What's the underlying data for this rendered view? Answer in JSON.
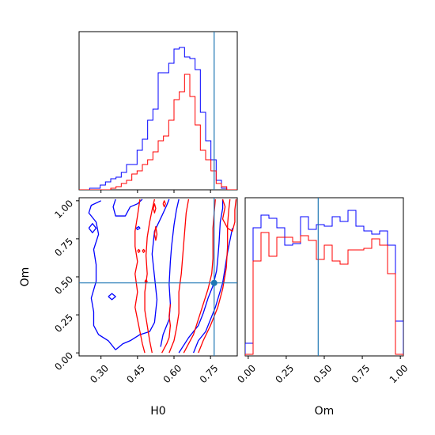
{
  "chart_data": {
    "type": "corner",
    "parameters": [
      "H0",
      "Om"
    ],
    "truth": {
      "H0": 0.765,
      "Om": 0.46
    },
    "colors": {
      "blue": "#0000ff",
      "red": "#ff0000",
      "truth": "#1f77b4"
    },
    "axes": {
      "H0": {
        "range": [
          0.21,
          0.86
        ],
        "ticks": [
          0.3,
          0.45,
          0.6,
          0.75
        ],
        "tick_labels": [
          "0.30",
          "0.45",
          "0.60",
          "0.75"
        ],
        "label": "H0"
      },
      "Om": {
        "range": [
          -0.02,
          1.02
        ],
        "ticks": [
          0.0,
          0.25,
          0.5,
          0.75,
          1.0
        ],
        "tick_labels": [
          "0.00",
          "0.25",
          "0.50",
          "0.75",
          "1.00"
        ],
        "label": "Om"
      }
    },
    "hist_H0": {
      "edges": [
        0.21,
        0.2317,
        0.2533,
        0.275,
        0.2967,
        0.3183,
        0.34,
        0.3617,
        0.3833,
        0.405,
        0.4267,
        0.4483,
        0.47,
        0.4917,
        0.5133,
        0.535,
        0.5567,
        0.5783,
        0.6,
        0.6217,
        0.6433,
        0.665,
        0.6867,
        0.7083,
        0.73,
        0.7517,
        0.7733,
        0.795,
        0.8167,
        0.8383,
        0.86
      ],
      "series": [
        {
          "color": "blue",
          "values": [
            0,
            0,
            0.01,
            0.01,
            0.03,
            0.05,
            0.07,
            0.08,
            0.11,
            0.16,
            0.16,
            0.25,
            0.32,
            0.44,
            0.51,
            0.74,
            0.74,
            0.8,
            0.89,
            0.9,
            0.84,
            0.83,
            0.76,
            0.49,
            0.31,
            0.19,
            0.06,
            0.01,
            0,
            0
          ]
        },
        {
          "color": "red",
          "values": [
            0,
            0,
            0,
            0,
            0,
            0,
            0.01,
            0.02,
            0.04,
            0.06,
            0.1,
            0.12,
            0.16,
            0.19,
            0.24,
            0.31,
            0.34,
            0.44,
            0.57,
            0.62,
            0.73,
            0.59,
            0.41,
            0.25,
            0.19,
            0.12,
            0.04,
            0.02,
            0,
            0
          ]
        }
      ]
    },
    "hist_Om": {
      "edges": [
        -0.02,
        0.032,
        0.084,
        0.136,
        0.188,
        0.24,
        0.292,
        0.344,
        0.396,
        0.448,
        0.5,
        0.552,
        0.604,
        0.656,
        0.708,
        0.76,
        0.812,
        0.864,
        0.916,
        0.968,
        1.02
      ],
      "series": [
        {
          "color": "blue",
          "values": [
            0.08,
            0.81,
            0.89,
            0.87,
            0.81,
            0.7,
            0.71,
            0.88,
            0.8,
            0.83,
            0.82,
            0.88,
            0.85,
            0.92,
            0.82,
            0.79,
            0.77,
            0.79,
            0.7,
            0.22
          ]
        },
        {
          "color": "red",
          "values": [
            0.01,
            0.6,
            0.78,
            0.63,
            0.75,
            0.75,
            0.72,
            0.76,
            0.73,
            0.61,
            0.7,
            0.6,
            0.58,
            0.67,
            0.67,
            0.68,
            0.74,
            0.7,
            0.52,
            0.01
          ]
        }
      ]
    },
    "contours": [
      {
        "color": "blue",
        "points": [
          [
            0.36,
            0.02
          ],
          [
            0.39,
            0.06
          ],
          [
            0.42,
            0.08
          ],
          [
            0.46,
            0.12
          ],
          [
            0.5,
            0.14
          ],
          [
            0.52,
            0.2
          ],
          [
            0.53,
            0.35
          ],
          [
            0.52,
            0.5
          ],
          [
            0.51,
            0.65
          ],
          [
            0.52,
            0.8
          ],
          [
            0.55,
            0.9
          ],
          [
            0.57,
            0.97
          ],
          [
            0.58,
            1.01
          ]
        ]
      },
      {
        "color": "blue",
        "points": [
          [
            0.545,
            0.04
          ],
          [
            0.555,
            0.12
          ],
          [
            0.565,
            0.16
          ],
          [
            0.58,
            0.22
          ],
          [
            0.585,
            0.32
          ],
          [
            0.58,
            0.45
          ],
          [
            0.585,
            0.6
          ],
          [
            0.59,
            0.7
          ],
          [
            0.6,
            0.84
          ],
          [
            0.61,
            0.94
          ],
          [
            0.62,
            1.01
          ]
        ]
      },
      {
        "color": "blue",
        "points": [
          [
            0.3,
            1.0
          ],
          [
            0.26,
            0.97
          ],
          [
            0.25,
            0.92
          ],
          [
            0.28,
            0.86
          ],
          [
            0.29,
            0.78
          ],
          [
            0.27,
            0.68
          ],
          [
            0.28,
            0.58
          ],
          [
            0.28,
            0.47
          ],
          [
            0.26,
            0.36
          ],
          [
            0.27,
            0.27
          ],
          [
            0.27,
            0.18
          ],
          [
            0.29,
            0.12
          ],
          [
            0.33,
            0.08
          ],
          [
            0.36,
            0.02
          ]
        ]
      },
      {
        "color": "blue",
        "points": [
          [
            0.36,
            1.01
          ],
          [
            0.35,
            0.96
          ],
          [
            0.36,
            0.9
          ],
          [
            0.4,
            0.9
          ],
          [
            0.42,
            0.96
          ],
          [
            0.45,
            0.98
          ],
          [
            0.47,
            1.01
          ]
        ]
      },
      {
        "color": "blue",
        "points": [
          [
            0.62,
            0.0
          ],
          [
            0.66,
            0.1
          ],
          [
            0.7,
            0.18
          ],
          [
            0.72,
            0.26
          ],
          [
            0.74,
            0.36
          ],
          [
            0.76,
            0.44
          ],
          [
            0.775,
            0.54
          ],
          [
            0.78,
            0.62
          ],
          [
            0.785,
            0.72
          ],
          [
            0.79,
            0.86
          ],
          [
            0.8,
            0.95
          ],
          [
            0.8,
            1.01
          ]
        ]
      },
      {
        "color": "blue",
        "points": [
          [
            0.68,
            0.0
          ],
          [
            0.7,
            0.08
          ],
          [
            0.73,
            0.14
          ],
          [
            0.75,
            0.22
          ],
          [
            0.77,
            0.3
          ],
          [
            0.785,
            0.38
          ],
          [
            0.8,
            0.46
          ],
          [
            0.81,
            0.56
          ],
          [
            0.82,
            0.66
          ],
          [
            0.83,
            0.74
          ],
          [
            0.84,
            0.82
          ]
        ]
      },
      {
        "color": "blue",
        "points": [
          [
            0.25,
            0.82
          ],
          [
            0.265,
            0.85
          ],
          [
            0.28,
            0.82
          ],
          [
            0.265,
            0.79
          ],
          [
            0.25,
            0.82
          ]
        ]
      },
      {
        "color": "blue",
        "points": [
          [
            0.33,
            0.37
          ],
          [
            0.345,
            0.39
          ],
          [
            0.36,
            0.37
          ],
          [
            0.345,
            0.35
          ],
          [
            0.33,
            0.37
          ]
        ]
      },
      {
        "color": "blue",
        "points": [
          [
            0.445,
            0.82
          ],
          [
            0.455,
            0.83
          ],
          [
            0.46,
            0.82
          ],
          [
            0.45,
            0.81
          ],
          [
            0.445,
            0.82
          ]
        ]
      },
      {
        "color": "red",
        "points": [
          [
            0.48,
            0.0
          ],
          [
            0.47,
            0.06
          ],
          [
            0.46,
            0.14
          ],
          [
            0.45,
            0.22
          ],
          [
            0.44,
            0.3
          ],
          [
            0.45,
            0.4
          ],
          [
            0.44,
            0.52
          ],
          [
            0.45,
            0.6
          ],
          [
            0.44,
            0.7
          ],
          [
            0.44,
            0.8
          ],
          [
            0.45,
            0.9
          ],
          [
            0.46,
            1.01
          ]
        ]
      },
      {
        "color": "red",
        "points": [
          [
            0.51,
            0.0
          ],
          [
            0.5,
            0.08
          ],
          [
            0.49,
            0.18
          ],
          [
            0.48,
            0.28
          ],
          [
            0.48,
            0.4
          ],
          [
            0.49,
            0.52
          ],
          [
            0.485,
            0.64
          ],
          [
            0.49,
            0.76
          ],
          [
            0.5,
            0.86
          ],
          [
            0.51,
            0.94
          ],
          [
            0.52,
            1.01
          ]
        ]
      },
      {
        "color": "red",
        "points": [
          [
            0.58,
            0.0
          ],
          [
            0.6,
            0.08
          ],
          [
            0.61,
            0.16
          ],
          [
            0.62,
            0.26
          ],
          [
            0.62,
            0.4
          ],
          [
            0.63,
            0.52
          ],
          [
            0.635,
            0.62
          ],
          [
            0.64,
            0.72
          ],
          [
            0.645,
            0.82
          ],
          [
            0.65,
            0.92
          ],
          [
            0.66,
            1.01
          ]
        ]
      },
      {
        "color": "red",
        "points": [
          [
            0.64,
            0.0
          ],
          [
            0.66,
            0.06
          ],
          [
            0.68,
            0.12
          ],
          [
            0.7,
            0.22
          ],
          [
            0.72,
            0.32
          ],
          [
            0.74,
            0.42
          ],
          [
            0.755,
            0.52
          ],
          [
            0.76,
            0.62
          ],
          [
            0.76,
            0.72
          ],
          [
            0.76,
            0.82
          ],
          [
            0.765,
            0.92
          ],
          [
            0.77,
            1.01
          ]
        ]
      },
      {
        "color": "red",
        "points": [
          [
            0.7,
            0.0
          ],
          [
            0.72,
            0.08
          ],
          [
            0.75,
            0.18
          ],
          [
            0.78,
            0.3
          ],
          [
            0.8,
            0.42
          ],
          [
            0.815,
            0.56
          ],
          [
            0.82,
            0.7
          ],
          [
            0.82,
            0.84
          ],
          [
            0.825,
            0.94
          ],
          [
            0.83,
            1.01
          ]
        ]
      },
      {
        "color": "red",
        "points": [
          [
            0.8,
            1.01
          ],
          [
            0.81,
            0.96
          ],
          [
            0.8,
            0.88
          ],
          [
            0.82,
            0.82
          ],
          [
            0.84,
            0.8
          ],
          [
            0.85,
            0.86
          ],
          [
            0.85,
            0.94
          ],
          [
            0.855,
            1.01
          ]
        ]
      },
      {
        "color": "red",
        "points": [
          [
            0.55,
            0.0
          ],
          [
            0.57,
            0.06
          ],
          [
            0.58,
            0.1
          ],
          [
            0.585,
            0.18
          ],
          [
            0.58,
            0.24
          ],
          [
            0.585,
            0.32
          ]
        ]
      },
      {
        "color": "red",
        "points": [
          [
            0.52,
            0.78
          ],
          [
            0.525,
            0.83
          ],
          [
            0.53,
            0.78
          ],
          [
            0.525,
            0.74
          ],
          [
            0.52,
            0.78
          ]
        ]
      },
      {
        "color": "red",
        "points": [
          [
            0.515,
            0.95
          ],
          [
            0.52,
            0.98
          ],
          [
            0.525,
            0.95
          ],
          [
            0.52,
            0.92
          ],
          [
            0.515,
            0.95
          ]
        ]
      },
      {
        "color": "red",
        "points": [
          [
            0.555,
            0.98
          ],
          [
            0.56,
            1.0
          ],
          [
            0.565,
            0.98
          ],
          [
            0.56,
            0.96
          ],
          [
            0.555,
            0.98
          ]
        ]
      },
      {
        "color": "red",
        "points": [
          [
            0.45,
            0.67
          ],
          [
            0.455,
            0.68
          ],
          [
            0.46,
            0.67
          ],
          [
            0.455,
            0.66
          ],
          [
            0.45,
            0.67
          ]
        ]
      },
      {
        "color": "red",
        "points": [
          [
            0.47,
            0.67
          ],
          [
            0.475,
            0.68
          ],
          [
            0.48,
            0.67
          ],
          [
            0.475,
            0.66
          ],
          [
            0.47,
            0.67
          ]
        ]
      },
      {
        "color": "red",
        "points": [
          [
            0.48,
            0.47
          ],
          [
            0.485,
            0.48
          ],
          [
            0.49,
            0.47
          ],
          [
            0.485,
            0.46
          ],
          [
            0.48,
            0.47
          ]
        ]
      }
    ]
  }
}
